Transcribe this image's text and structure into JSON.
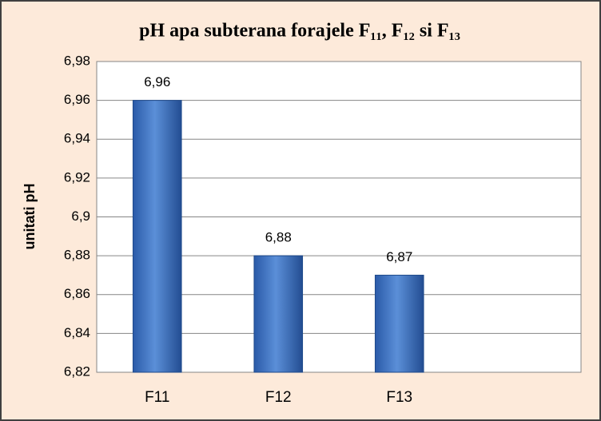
{
  "chart_data": {
    "type": "bar",
    "title": "pH apa subterana forajele F₁₁, F₁₂ si F₁₃",
    "y_label": "unitati pH",
    "categories": [
      "F11",
      "F12",
      "F13",
      null
    ],
    "values": [
      6.96,
      6.88,
      6.87,
      null
    ],
    "value_labels": [
      "6,96",
      "6,88",
      "6,87",
      null
    ],
    "color": "#3a6fc0",
    "ylim": [
      6.82,
      6.98
    ],
    "yticks": [
      {
        "value": 6.82,
        "label": "6,82"
      },
      {
        "value": 6.84,
        "label": "6,84"
      },
      {
        "value": 6.86,
        "label": "6,86"
      },
      {
        "value": 6.88,
        "label": "6,88"
      },
      {
        "value": 6.9,
        "label": "6,9"
      },
      {
        "value": 6.92,
        "label": "6,92"
      },
      {
        "value": 6.94,
        "label": "6,94"
      },
      {
        "value": 6.96,
        "label": "6,96"
      },
      {
        "value": 6.98,
        "label": "6,98"
      }
    ],
    "grid": true
  }
}
